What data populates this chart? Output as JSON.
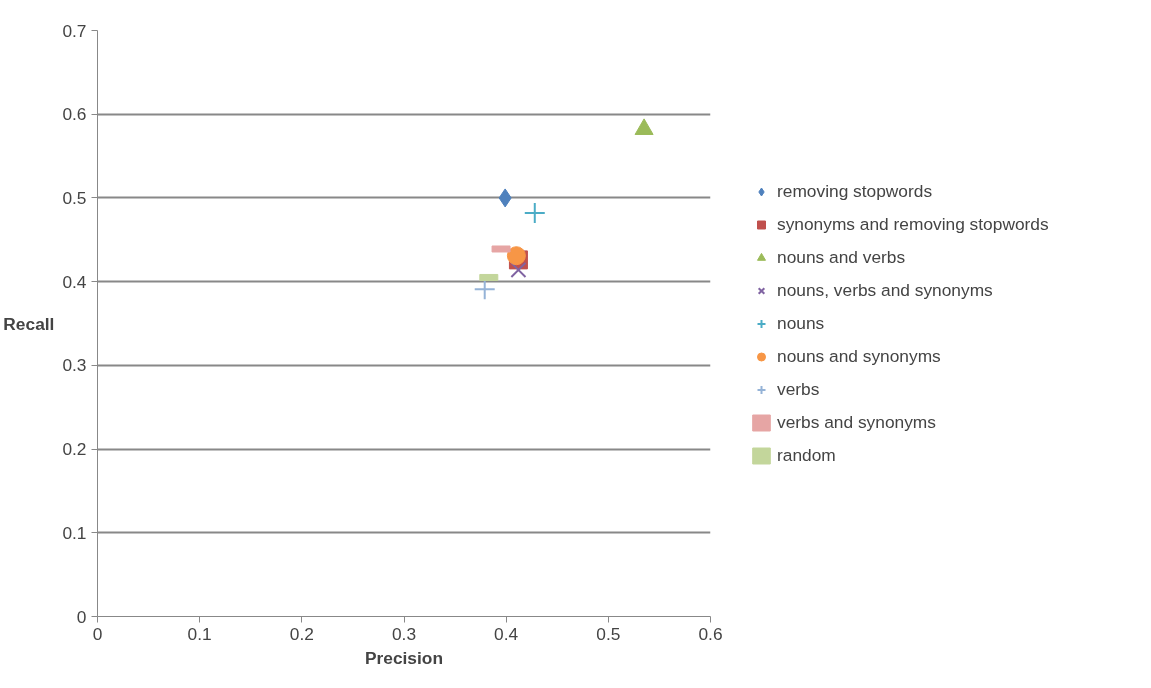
{
  "chart_data": {
    "type": "scatter",
    "xlabel": "Precision",
    "ylabel": "Recall",
    "xlim": [
      0,
      0.6
    ],
    "ylim": [
      0,
      0.7
    ],
    "xticks": [
      0,
      0.1,
      0.2,
      0.3,
      0.4,
      0.5,
      0.6
    ],
    "yticks": [
      0,
      0.1,
      0.2,
      0.3,
      0.4,
      0.5,
      0.6,
      0.7
    ],
    "grid": "y",
    "legend": "right",
    "series": [
      {
        "name": "removing stopwords",
        "color": "#4f81bd",
        "marker": "diamond",
        "x": [
          0.399
        ],
        "values": [
          0.5
        ]
      },
      {
        "name": "synonyms and removing stopwords",
        "color": "#c0504d",
        "marker": "square",
        "x": [
          0.412
        ],
        "values": [
          0.426
        ]
      },
      {
        "name": "nouns and verbs",
        "color": "#9bbb59",
        "marker": "triangle",
        "x": [
          0.535
        ],
        "values": [
          0.582
        ]
      },
      {
        "name": "nouns, verbs and synonyms",
        "color": "#8064a2",
        "marker": "x",
        "x": [
          0.412
        ],
        "values": [
          0.414
        ]
      },
      {
        "name": "nouns",
        "color": "#4bacc6",
        "marker": "cross",
        "x": [
          0.428
        ],
        "values": [
          0.482
        ]
      },
      {
        "name": "nouns and synonyms",
        "color": "#f79646",
        "marker": "circle",
        "x": [
          0.41
        ],
        "values": [
          0.431
        ]
      },
      {
        "name": "verbs",
        "color": "#95b3d7",
        "marker": "cross",
        "x": [
          0.379
        ],
        "values": [
          0.391
        ]
      },
      {
        "name": "verbs and synonyms",
        "color": "#e6a5a4",
        "x": [
          0.395
        ],
        "values": [
          0.439
        ]
      },
      {
        "name": "random",
        "color": "#c3d69b",
        "x": [
          0.383
        ],
        "values": [
          0.405
        ]
      }
    ]
  }
}
